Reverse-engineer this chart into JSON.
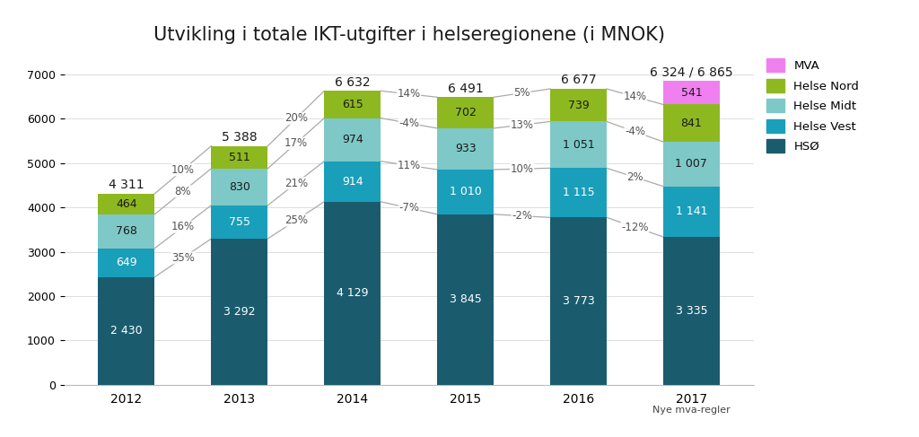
{
  "title": "Utvikling i totale IKT-utgifter i helseregionene (i MNOK)",
  "years": [
    "2012",
    "2013",
    "2014",
    "2015",
    "2016",
    "2017"
  ],
  "year_label_2017": "Nye mva-regler",
  "segments": {
    "HSO": [
      2430,
      3292,
      4129,
      3845,
      3773,
      3335
    ],
    "Helse Vest": [
      649,
      755,
      914,
      1010,
      1115,
      1141
    ],
    "Helse Midt": [
      768,
      830,
      974,
      933,
      1051,
      1007
    ],
    "Helse Nord": [
      464,
      511,
      615,
      702,
      739,
      841
    ],
    "MVA": [
      0,
      0,
      0,
      0,
      0,
      541
    ]
  },
  "totals": [
    "4 311",
    "5 388",
    "6 632",
    "6 491",
    "6 677",
    "6 324 / 6 865"
  ],
  "pct_labels": {
    "2013": {
      "HSO": "35%",
      "Vest": "16%",
      "Midt": "8%",
      "Nord": "10%"
    },
    "2014": {
      "HSO": "25%",
      "Vest": "21%",
      "Midt": "17%",
      "Nord": "20%"
    },
    "2015": {
      "HSO": "-7%",
      "Vest": "11%",
      "Midt": "-4%",
      "Nord": "14%"
    },
    "2016": {
      "HSO": "-2%",
      "Vest": "10%",
      "Midt": "13%",
      "Nord": "5%"
    },
    "2017": {
      "HSO": "-12%",
      "Vest": "2%",
      "Midt": "-4%",
      "Nord": "14%"
    }
  },
  "colors": {
    "HSO": "#1a5c6e",
    "Helse Vest": "#1a9fba",
    "Helse Midt": "#7ec8c8",
    "Helse Nord": "#8eb820",
    "MVA": "#f080f0"
  },
  "bar_width": 0.5,
  "ylim": [
    0,
    7500
  ],
  "yticks": [
    0,
    1000,
    2000,
    3000,
    4000,
    5000,
    6000,
    7000
  ],
  "bg_color": "#ffffff",
  "title_fontsize": 15,
  "label_fontsize": 9,
  "pct_fontsize": 8.5
}
